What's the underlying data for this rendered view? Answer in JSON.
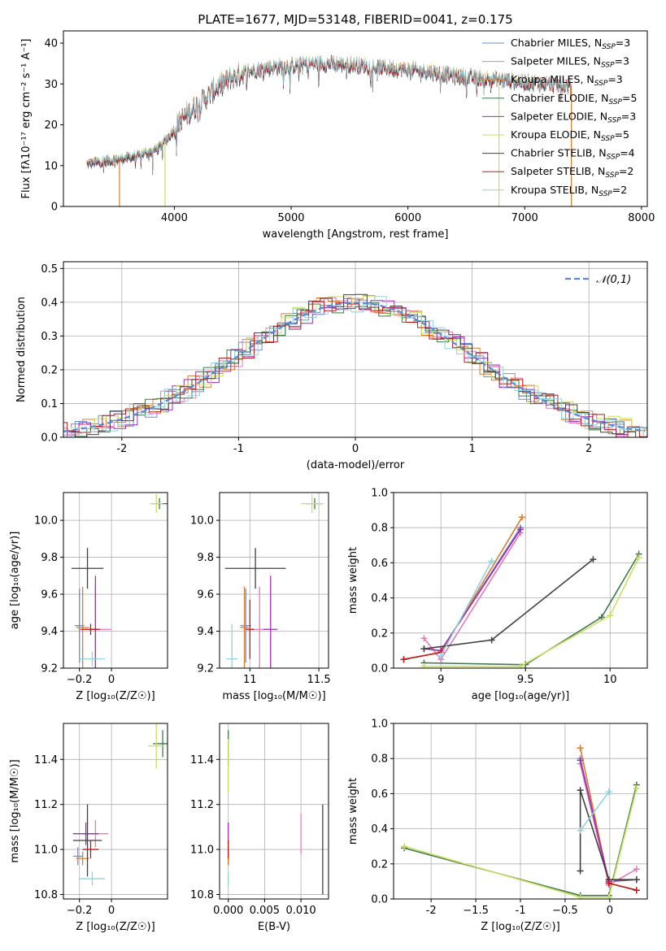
{
  "colors": {
    "chabrier_miles": "#6a8fd6",
    "salpeter_miles": "#e87ab8",
    "kroupa_miles": "#e07b2a",
    "chabrier_elodie": "#3f7a4a",
    "salpeter_elodie": "#9b2fae",
    "kroupa_elodie": "#c9e060",
    "chabrier_stelib": "#404040",
    "salpeter_stelib": "#c01818",
    "kroupa_stelib": "#8fd4e0",
    "gauss": "#5b86d8",
    "grid": "#b0b0b0"
  },
  "chart_data": [
    {
      "id": "spectrum",
      "type": "line",
      "title": "PLATE=1677, MJD=53148, FIBERID=0041, z=0.175",
      "xlabel": "wavelength [Angstrom, rest frame]",
      "ylabel": "Flux [fλ10⁻¹⁷ erg cm⁻² s⁻¹ A⁻¹]",
      "xlim": [
        3050,
        8050
      ],
      "ylim": [
        0,
        43
      ],
      "xticks": [
        4000,
        5000,
        6000,
        7000,
        8000
      ],
      "yticks": [
        0,
        10,
        20,
        30,
        40
      ],
      "grid": false,
      "legend_position": "top-right",
      "legend": [
        {
          "name": "Chabrier MILES, N",
          "sub": "SSP",
          "tail": "=3",
          "color": "chabrier_miles"
        },
        {
          "name": "Salpeter MILES, N",
          "sub": "SSP",
          "tail": "=3",
          "color": "salpeter_miles"
        },
        {
          "name": "Kroupa MILES, N",
          "sub": "SSP",
          "tail": "=3",
          "color": "kroupa_miles"
        },
        {
          "name": "Chabrier ELODIE, N",
          "sub": "SSP",
          "tail": "=5",
          "color": "chabrier_elodie"
        },
        {
          "name": "Salpeter ELODIE, N",
          "sub": "SSP",
          "tail": "=3",
          "color": "salpeter_elodie"
        },
        {
          "name": "Kroupa ELODIE, N",
          "sub": "SSP",
          "tail": "=5",
          "color": "kroupa_elodie"
        },
        {
          "name": "Chabrier STELIB, N",
          "sub": "SSP",
          "tail": "=4",
          "color": "chabrier_stelib"
        },
        {
          "name": "Salpeter STELIB, N",
          "sub": "SSP",
          "tail": "=2",
          "color": "salpeter_stelib"
        },
        {
          "name": "Kroupa STELIB, N",
          "sub": "SSP",
          "tail": "=2",
          "color": "kroupa_stelib"
        }
      ],
      "continuum_anchors": [
        [
          3250,
          10.5
        ],
        [
          3500,
          11.5
        ],
        [
          3700,
          12.5
        ],
        [
          3850,
          14
        ],
        [
          3950,
          17
        ],
        [
          4050,
          21
        ],
        [
          4200,
          25
        ],
        [
          4400,
          30
        ],
        [
          4600,
          33
        ],
        [
          4800,
          34
        ],
        [
          5000,
          34.5
        ],
        [
          5200,
          35
        ],
        [
          5400,
          35
        ],
        [
          5600,
          34.5
        ],
        [
          5800,
          34
        ],
        [
          6000,
          33.5
        ],
        [
          6200,
          33
        ],
        [
          6400,
          32
        ],
        [
          6600,
          31.5
        ],
        [
          6800,
          31
        ],
        [
          7000,
          30.5
        ],
        [
          7200,
          30
        ],
        [
          7400,
          29.5
        ]
      ],
      "drops": [
        {
          "x": 3530,
          "color": "kroupa_miles"
        },
        {
          "x": 3920,
          "color": "kroupa_elodie"
        },
        {
          "x": 6780,
          "color": "kroupa_elodie"
        },
        {
          "x": 7400,
          "color": "kroupa_miles"
        }
      ]
    },
    {
      "id": "residuals",
      "type": "histogram",
      "xlabel": "(data-model)/error",
      "ylabel": "Normed distribution",
      "xlim": [
        -2.5,
        2.5
      ],
      "ylim": [
        0,
        0.52
      ],
      "xticks": [
        -2,
        -1,
        0,
        1,
        2
      ],
      "yticks": [
        0.0,
        0.1,
        0.2,
        0.3,
        0.4,
        0.5
      ],
      "grid": true,
      "legend_position": "top-right",
      "legend": [
        {
          "name": "𝒩(0,1)",
          "style": "dashed",
          "color": "gauss"
        }
      ],
      "bin_width": 0.1
    },
    {
      "id": "age_vs_Z",
      "type": "errorbar",
      "xlabel": "Z [log₁₀(Z/Z☉)]",
      "ylabel": "age  [log₁₀(age/yr)]",
      "xlim": [
        -0.3,
        0.35
      ],
      "ylim": [
        9.2,
        10.15
      ],
      "xticks": [
        -0.2,
        0.0
      ],
      "yticks": [
        9.2,
        9.4,
        9.6,
        9.8,
        10.0
      ],
      "grid": true,
      "points": [
        {
          "color": "chabrier_miles",
          "x": -0.2,
          "xerr": 0.03,
          "y": 9.43,
          "yerr": 0.2
        },
        {
          "color": "salpeter_miles",
          "x": -0.1,
          "xerr": 0.1,
          "y": 9.41,
          "yerr": 0.23
        },
        {
          "color": "kroupa_miles",
          "x": -0.18,
          "xerr": 0.04,
          "y": 9.42,
          "yerr": 0.22
        },
        {
          "color": "chabrier_elodie",
          "x": 0.3,
          "xerr": 0.05,
          "y": 10.09,
          "yerr": 0.03
        },
        {
          "color": "salpeter_elodie",
          "x": -0.1,
          "xerr": 0.02,
          "y": 9.41,
          "yerr": 0.29
        },
        {
          "color": "kroupa_elodie",
          "x": 0.28,
          "xerr": 0.04,
          "y": 10.09,
          "yerr": 0.05
        },
        {
          "color": "chabrier_stelib",
          "x": -0.15,
          "xerr": 0.1,
          "y": 9.74,
          "yerr": 0.11
        },
        {
          "color": "salpeter_stelib",
          "x": -0.13,
          "xerr": 0.06,
          "y": 9.41,
          "yerr": 0.03
        },
        {
          "color": "kroupa_stelib",
          "x": -0.12,
          "xerr": 0.08,
          "y": 9.25,
          "yerr": 0.04
        }
      ]
    },
    {
      "id": "age_vs_mass",
      "type": "errorbar",
      "xlabel": "mass [log₁₀(M/M☉)]",
      "ylabel": "",
      "xlim": [
        10.78,
        11.57
      ],
      "ylim": [
        9.2,
        10.15
      ],
      "xticks": [
        11.0,
        11.5
      ],
      "yticks": [
        9.2,
        9.4,
        9.6,
        9.8,
        10.0
      ],
      "grid": true,
      "points": [
        {
          "color": "chabrier_miles",
          "x": 10.97,
          "xerr": 0.04,
          "y": 9.43,
          "yerr": 0.2
        },
        {
          "color": "salpeter_miles",
          "x": 11.07,
          "xerr": 0.06,
          "y": 9.41,
          "yerr": 0.23
        },
        {
          "color": "kroupa_miles",
          "x": 10.96,
          "xerr": 0.03,
          "y": 9.42,
          "yerr": 0.22
        },
        {
          "color": "chabrier_elodie",
          "x": 11.47,
          "xerr": 0.06,
          "y": 10.09,
          "yerr": 0.03
        },
        {
          "color": "salpeter_elodie",
          "x": 11.15,
          "xerr": 0.05,
          "y": 9.41,
          "yerr": 0.29
        },
        {
          "color": "kroupa_elodie",
          "x": 11.45,
          "xerr": 0.08,
          "y": 10.09,
          "yerr": 0.05
        },
        {
          "color": "chabrier_stelib",
          "x": 11.04,
          "xerr": 0.22,
          "y": 9.74,
          "yerr": 0.11
        },
        {
          "color": "salpeter_stelib",
          "x": 11.0,
          "xerr": 0.03,
          "y": 9.41,
          "yerr": 0.16
        },
        {
          "color": "kroupa_stelib",
          "x": 10.87,
          "xerr": 0.04,
          "y": 9.25,
          "yerr": 0.19
        }
      ]
    },
    {
      "id": "weight_vs_age",
      "type": "line",
      "xlabel": "age  [log₁₀(age/yr)]",
      "ylabel": "mass weight",
      "xlim": [
        8.72,
        10.22
      ],
      "ylim": [
        0,
        1.0
      ],
      "xticks": [
        9.0,
        9.5,
        10.0
      ],
      "yticks": [
        0.0,
        0.2,
        0.4,
        0.6,
        0.8,
        1.0
      ],
      "grid": true,
      "series": [
        {
          "color": "chabrier_miles",
          "x": [
            9.0,
            9.47
          ],
          "y": [
            0.1,
            0.8
          ]
        },
        {
          "color": "salpeter_miles",
          "x": [
            8.9,
            9.0,
            9.47
          ],
          "y": [
            0.17,
            0.05,
            0.77
          ]
        },
        {
          "color": "kroupa_miles",
          "x": [
            8.78,
            9.0,
            9.48
          ],
          "y": [
            0.05,
            0.09,
            0.86
          ]
        },
        {
          "color": "chabrier_elodie",
          "x": [
            8.9,
            9.5,
            9.95,
            10.17
          ],
          "y": [
            0.03,
            0.02,
            0.29,
            0.65
          ]
        },
        {
          "color": "salpeter_elodie",
          "x": [
            8.9,
            9.0,
            9.47
          ],
          "y": [
            0.11,
            0.1,
            0.79
          ]
        },
        {
          "color": "kroupa_elodie",
          "x": [
            8.9,
            9.47,
            10.0,
            10.17
          ],
          "y": [
            0.01,
            0.01,
            0.3,
            0.63
          ]
        },
        {
          "color": "chabrier_stelib",
          "x": [
            8.9,
            9.3,
            9.9
          ],
          "y": [
            0.11,
            0.16,
            0.62
          ]
        },
        {
          "color": "salpeter_stelib",
          "x": [
            8.78,
            9.0
          ],
          "y": [
            0.05,
            0.09
          ]
        },
        {
          "color": "kroupa_stelib",
          "x": [
            9.0,
            9.3
          ],
          "y": [
            0.07,
            0.61
          ]
        }
      ]
    },
    {
      "id": "mass_vs_Z",
      "type": "errorbar",
      "xlabel": "Z [log₁₀(Z/Z☉)]",
      "ylabel": "mass [log₁₀(M/M☉)]",
      "xlim": [
        -0.3,
        0.35
      ],
      "ylim": [
        10.78,
        11.56
      ],
      "xticks": [
        -0.2,
        0.0
      ],
      "yticks": [
        10.8,
        11.0,
        11.2,
        11.4
      ],
      "grid": true,
      "points": [
        {
          "color": "chabrier_miles",
          "x": -0.21,
          "xerr": 0.03,
          "y": 10.97,
          "yerr": 0.04
        },
        {
          "color": "salpeter_miles",
          "x": -0.1,
          "xerr": 0.08,
          "y": 11.07,
          "yerr": 0.06
        },
        {
          "color": "kroupa_miles",
          "x": -0.18,
          "xerr": 0.04,
          "y": 10.96,
          "yerr": 0.03
        },
        {
          "color": "chabrier_elodie",
          "x": 0.32,
          "xerr": 0.06,
          "y": 11.47,
          "yerr": 0.06
        },
        {
          "color": "salpeter_elodie",
          "x": -0.16,
          "xerr": 0.08,
          "y": 11.07,
          "yerr": 0.05
        },
        {
          "color": "kroupa_elodie",
          "x": 0.28,
          "xerr": 0.05,
          "y": 11.46,
          "yerr": 0.1
        },
        {
          "color": "chabrier_stelib",
          "x": -0.15,
          "xerr": 0.09,
          "y": 11.04,
          "yerr": 0.16
        },
        {
          "color": "salpeter_stelib",
          "x": -0.13,
          "xerr": 0.05,
          "y": 11.0,
          "yerr": 0.04
        },
        {
          "color": "kroupa_stelib",
          "x": -0.12,
          "xerr": 0.08,
          "y": 10.87,
          "yerr": 0.03
        }
      ]
    },
    {
      "id": "mass_vs_ebv",
      "type": "errorbar",
      "xlabel": "E(B-V)",
      "ylabel": "",
      "xlim": [
        -0.0012,
        0.0138
      ],
      "ylim": [
        10.78,
        11.56
      ],
      "xticks": [
        0.0,
        0.005,
        0.01
      ],
      "xticklabels": [
        "0.000",
        "0.005",
        "0.010"
      ],
      "yticks": [
        10.8,
        11.0,
        11.2,
        11.4
      ],
      "grid": true,
      "points": [
        {
          "color": "chabrier_miles",
          "x": 0.0,
          "xerr": 0.0,
          "y": 10.97,
          "yerr": 0.04
        },
        {
          "color": "salpeter_miles",
          "x": 0.01,
          "xerr": 0.0,
          "y": 11.07,
          "yerr": 0.09
        },
        {
          "color": "kroupa_miles",
          "x": 0.0,
          "xerr": 0.0,
          "y": 10.96,
          "yerr": 0.03
        },
        {
          "color": "chabrier_elodie",
          "x": 0.0,
          "xerr": 0.0,
          "y": 11.45,
          "yerr": 0.08
        },
        {
          "color": "salpeter_elodie",
          "x": 0.0,
          "xerr": 0.0,
          "y": 11.07,
          "yerr": 0.05
        },
        {
          "color": "kroupa_elodie",
          "x": 0.0,
          "xerr": 0.0,
          "y": 11.37,
          "yerr": 0.12
        },
        {
          "color": "chabrier_stelib",
          "x": 0.013,
          "xerr": 0.0,
          "y": 11.0,
          "yerr": 0.2
        },
        {
          "color": "salpeter_stelib",
          "x": 0.0,
          "xerr": 0.0,
          "y": 11.0,
          "yerr": 0.04
        },
        {
          "color": "kroupa_stelib",
          "x": 0.0,
          "xerr": 0.0,
          "y": 10.87,
          "yerr": 0.03
        }
      ]
    },
    {
      "id": "weight_vs_Z",
      "type": "line",
      "xlabel": "Z [log₁₀(Z/Z☉)]",
      "ylabel": "mass weight",
      "xlim": [
        -2.42,
        0.42
      ],
      "ylim": [
        0,
        1.0
      ],
      "xticks": [
        -2.0,
        -1.5,
        -1.0,
        -0.5,
        0.0
      ],
      "yticks": [
        0.0,
        0.2,
        0.4,
        0.6,
        0.8,
        1.0
      ],
      "grid": true,
      "series": [
        {
          "color": "chabrier_miles",
          "x": [
            -0.33,
            -0.01
          ],
          "y": [
            0.8,
            0.1
          ]
        },
        {
          "color": "salpeter_miles",
          "x": [
            -0.33,
            -0.01,
            0.3
          ],
          "y": [
            0.77,
            0.08,
            0.17
          ]
        },
        {
          "color": "kroupa_miles",
          "x": [
            -0.33,
            -0.01,
            0.3
          ],
          "y": [
            0.86,
            0.09,
            0.05
          ]
        },
        {
          "color": "chabrier_elodie",
          "x": [
            -2.3,
            -0.33,
            -0.01,
            0.3
          ],
          "y": [
            0.29,
            0.02,
            0.02,
            0.65
          ]
        },
        {
          "color": "salpeter_elodie",
          "x": [
            -0.33,
            -0.01,
            0.3
          ],
          "y": [
            0.79,
            0.1,
            0.11
          ]
        },
        {
          "color": "kroupa_elodie",
          "x": [
            -2.3,
            -0.33,
            -0.01,
            0.3
          ],
          "y": [
            0.3,
            0.01,
            0.01,
            0.63
          ]
        },
        {
          "color": "chabrier_stelib",
          "x": [
            -0.33,
            -0.33,
            -0.01,
            0.3
          ],
          "y": [
            0.16,
            0.62,
            0.11,
            0.11
          ]
        },
        {
          "color": "salpeter_stelib",
          "x": [
            -0.01,
            0.3
          ],
          "y": [
            0.09,
            0.05
          ]
        },
        {
          "color": "kroupa_stelib",
          "x": [
            -0.33,
            -0.01
          ],
          "y": [
            0.39,
            0.61
          ]
        }
      ]
    }
  ]
}
